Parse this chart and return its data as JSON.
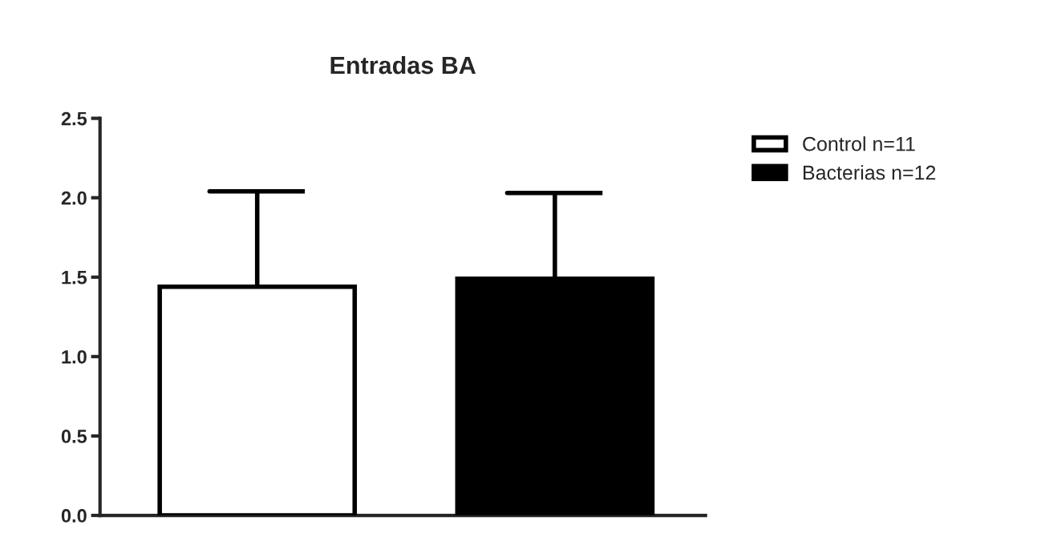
{
  "chart_data": {
    "type": "bar",
    "title": "Entradas BA",
    "categories": [
      null
    ],
    "series": [
      {
        "name": "Control n=11",
        "color": "#ffffff",
        "values": [
          1.44
        ],
        "errors": [
          [
            1.44,
            2.04
          ]
        ]
      },
      {
        "name": "Bacterias n=12",
        "color": "#000000",
        "values": [
          1.49
        ],
        "errors": [
          [
            1.49,
            2.03
          ]
        ]
      }
    ],
    "ylim": [
      0,
      2.5
    ],
    "yticks": [
      {
        "value": 0,
        "label": "0.0"
      },
      {
        "value": 0.5,
        "label": "0.5"
      },
      {
        "value": 1,
        "label": "1.0"
      },
      {
        "value": 1.5,
        "label": "1.5"
      },
      {
        "value": 2,
        "label": "2.0"
      },
      {
        "value": 2.5,
        "label": "2.5"
      }
    ],
    "tick_labels": "y",
    "legend": "top right",
    "grid": false
  }
}
